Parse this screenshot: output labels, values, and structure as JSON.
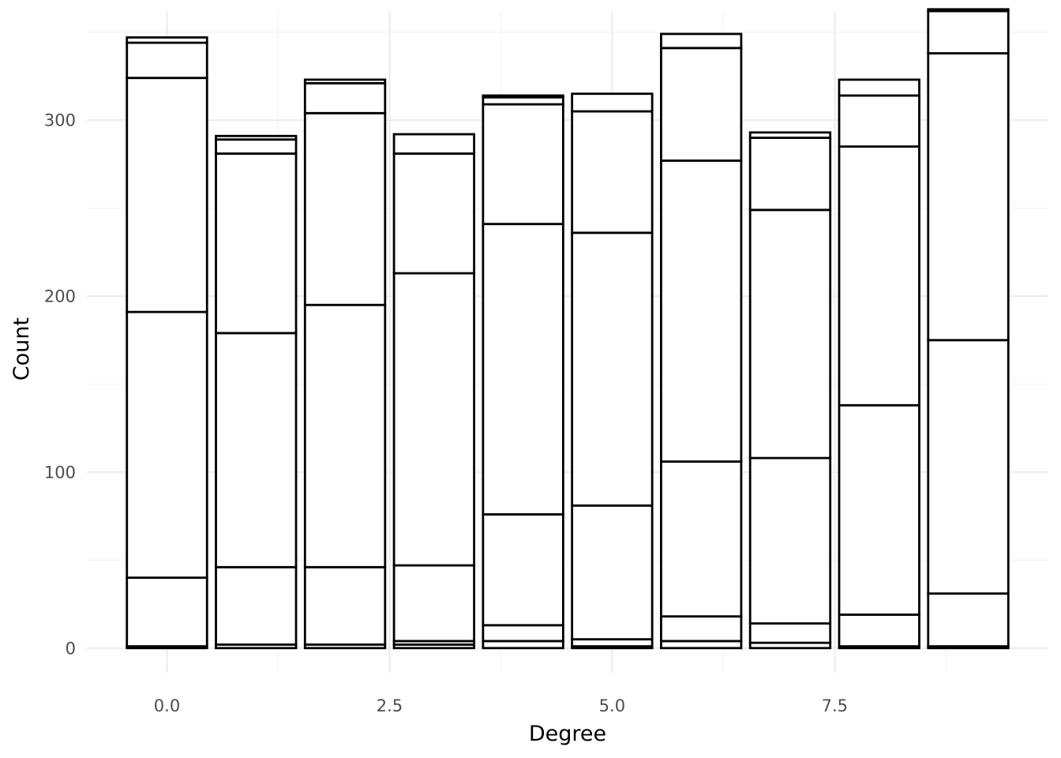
{
  "chart_data": {
    "type": "bar",
    "stacked": true,
    "xlabel": "Degree",
    "ylabel": "Count",
    "xlim": [
      -0.9,
      9.9
    ],
    "ylim": [
      -14,
      362
    ],
    "x_ticks": [
      0.0,
      2.5,
      5.0,
      7.5
    ],
    "x_tick_labels": [
      "0.0",
      "2.5",
      "5.0",
      "7.5"
    ],
    "y_ticks": [
      0,
      100,
      200,
      300
    ],
    "y_tick_labels": [
      "0",
      "100",
      "200",
      "300"
    ],
    "grid": true,
    "legend": "none",
    "bar_fill": "#ffffff",
    "bar_outline": "#000000",
    "bars": [
      {
        "x": 0,
        "cumulative_boundaries": [
          0,
          1,
          40,
          191,
          324,
          344,
          347
        ]
      },
      {
        "x": 1,
        "cumulative_boundaries": [
          0,
          2,
          46,
          179,
          281,
          289,
          291
        ]
      },
      {
        "x": 2,
        "cumulative_boundaries": [
          0,
          2,
          46,
          195,
          304,
          321,
          323
        ]
      },
      {
        "x": 3,
        "cumulative_boundaries": [
          0,
          2,
          4,
          47,
          213,
          281,
          292
        ]
      },
      {
        "x": 4,
        "cumulative_boundaries": [
          0,
          4,
          13,
          76,
          241,
          309,
          313,
          314
        ]
      },
      {
        "x": 5,
        "cumulative_boundaries": [
          0,
          1,
          5,
          81,
          236,
          305,
          315
        ]
      },
      {
        "x": 6,
        "cumulative_boundaries": [
          0,
          4,
          18,
          106,
          277,
          341,
          349
        ]
      },
      {
        "x": 7,
        "cumulative_boundaries": [
          0,
          3,
          14,
          108,
          249,
          290,
          293
        ]
      },
      {
        "x": 8,
        "cumulative_boundaries": [
          0,
          1,
          19,
          138,
          285,
          314,
          323
        ]
      },
      {
        "x": 9,
        "cumulative_boundaries": [
          0,
          1,
          31,
          175,
          338,
          362,
          363
        ]
      }
    ]
  }
}
